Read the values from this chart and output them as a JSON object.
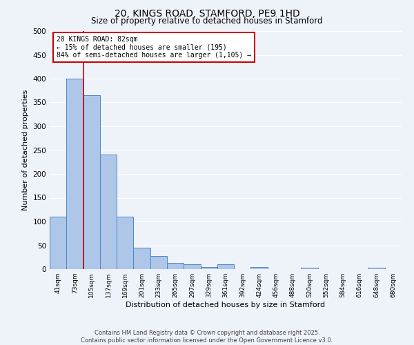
{
  "title": "20, KINGS ROAD, STAMFORD, PE9 1HD",
  "subtitle": "Size of property relative to detached houses in Stamford",
  "xlabel": "Distribution of detached houses by size in Stamford",
  "ylabel": "Number of detached properties",
  "categories": [
    "41sqm",
    "73sqm",
    "105sqm",
    "137sqm",
    "169sqm",
    "201sqm",
    "233sqm",
    "265sqm",
    "297sqm",
    "329sqm",
    "361sqm",
    "392sqm",
    "424sqm",
    "456sqm",
    "488sqm",
    "520sqm",
    "552sqm",
    "584sqm",
    "616sqm",
    "648sqm",
    "680sqm"
  ],
  "values": [
    110,
    400,
    365,
    240,
    110,
    45,
    28,
    13,
    10,
    4,
    10,
    0,
    4,
    0,
    0,
    3,
    0,
    0,
    0,
    3,
    0
  ],
  "bar_color": "#aec6e8",
  "bar_edge_color": "#4f86c6",
  "vline_x_index": 1,
  "vline_color": "#cc0000",
  "annotation_box_text": "20 KINGS ROAD: 82sqm\n← 15% of detached houses are smaller (195)\n84% of semi-detached houses are larger (1,105) →",
  "annotation_box_color": "#cc0000",
  "background_color": "#eef2f9",
  "grid_color": "#ffffff",
  "footer": "Contains HM Land Registry data © Crown copyright and database right 2025.\nContains public sector information licensed under the Open Government Licence v3.0.",
  "ylim": [
    0,
    500
  ],
  "yticks": [
    0,
    50,
    100,
    150,
    200,
    250,
    300,
    350,
    400,
    450,
    500
  ]
}
